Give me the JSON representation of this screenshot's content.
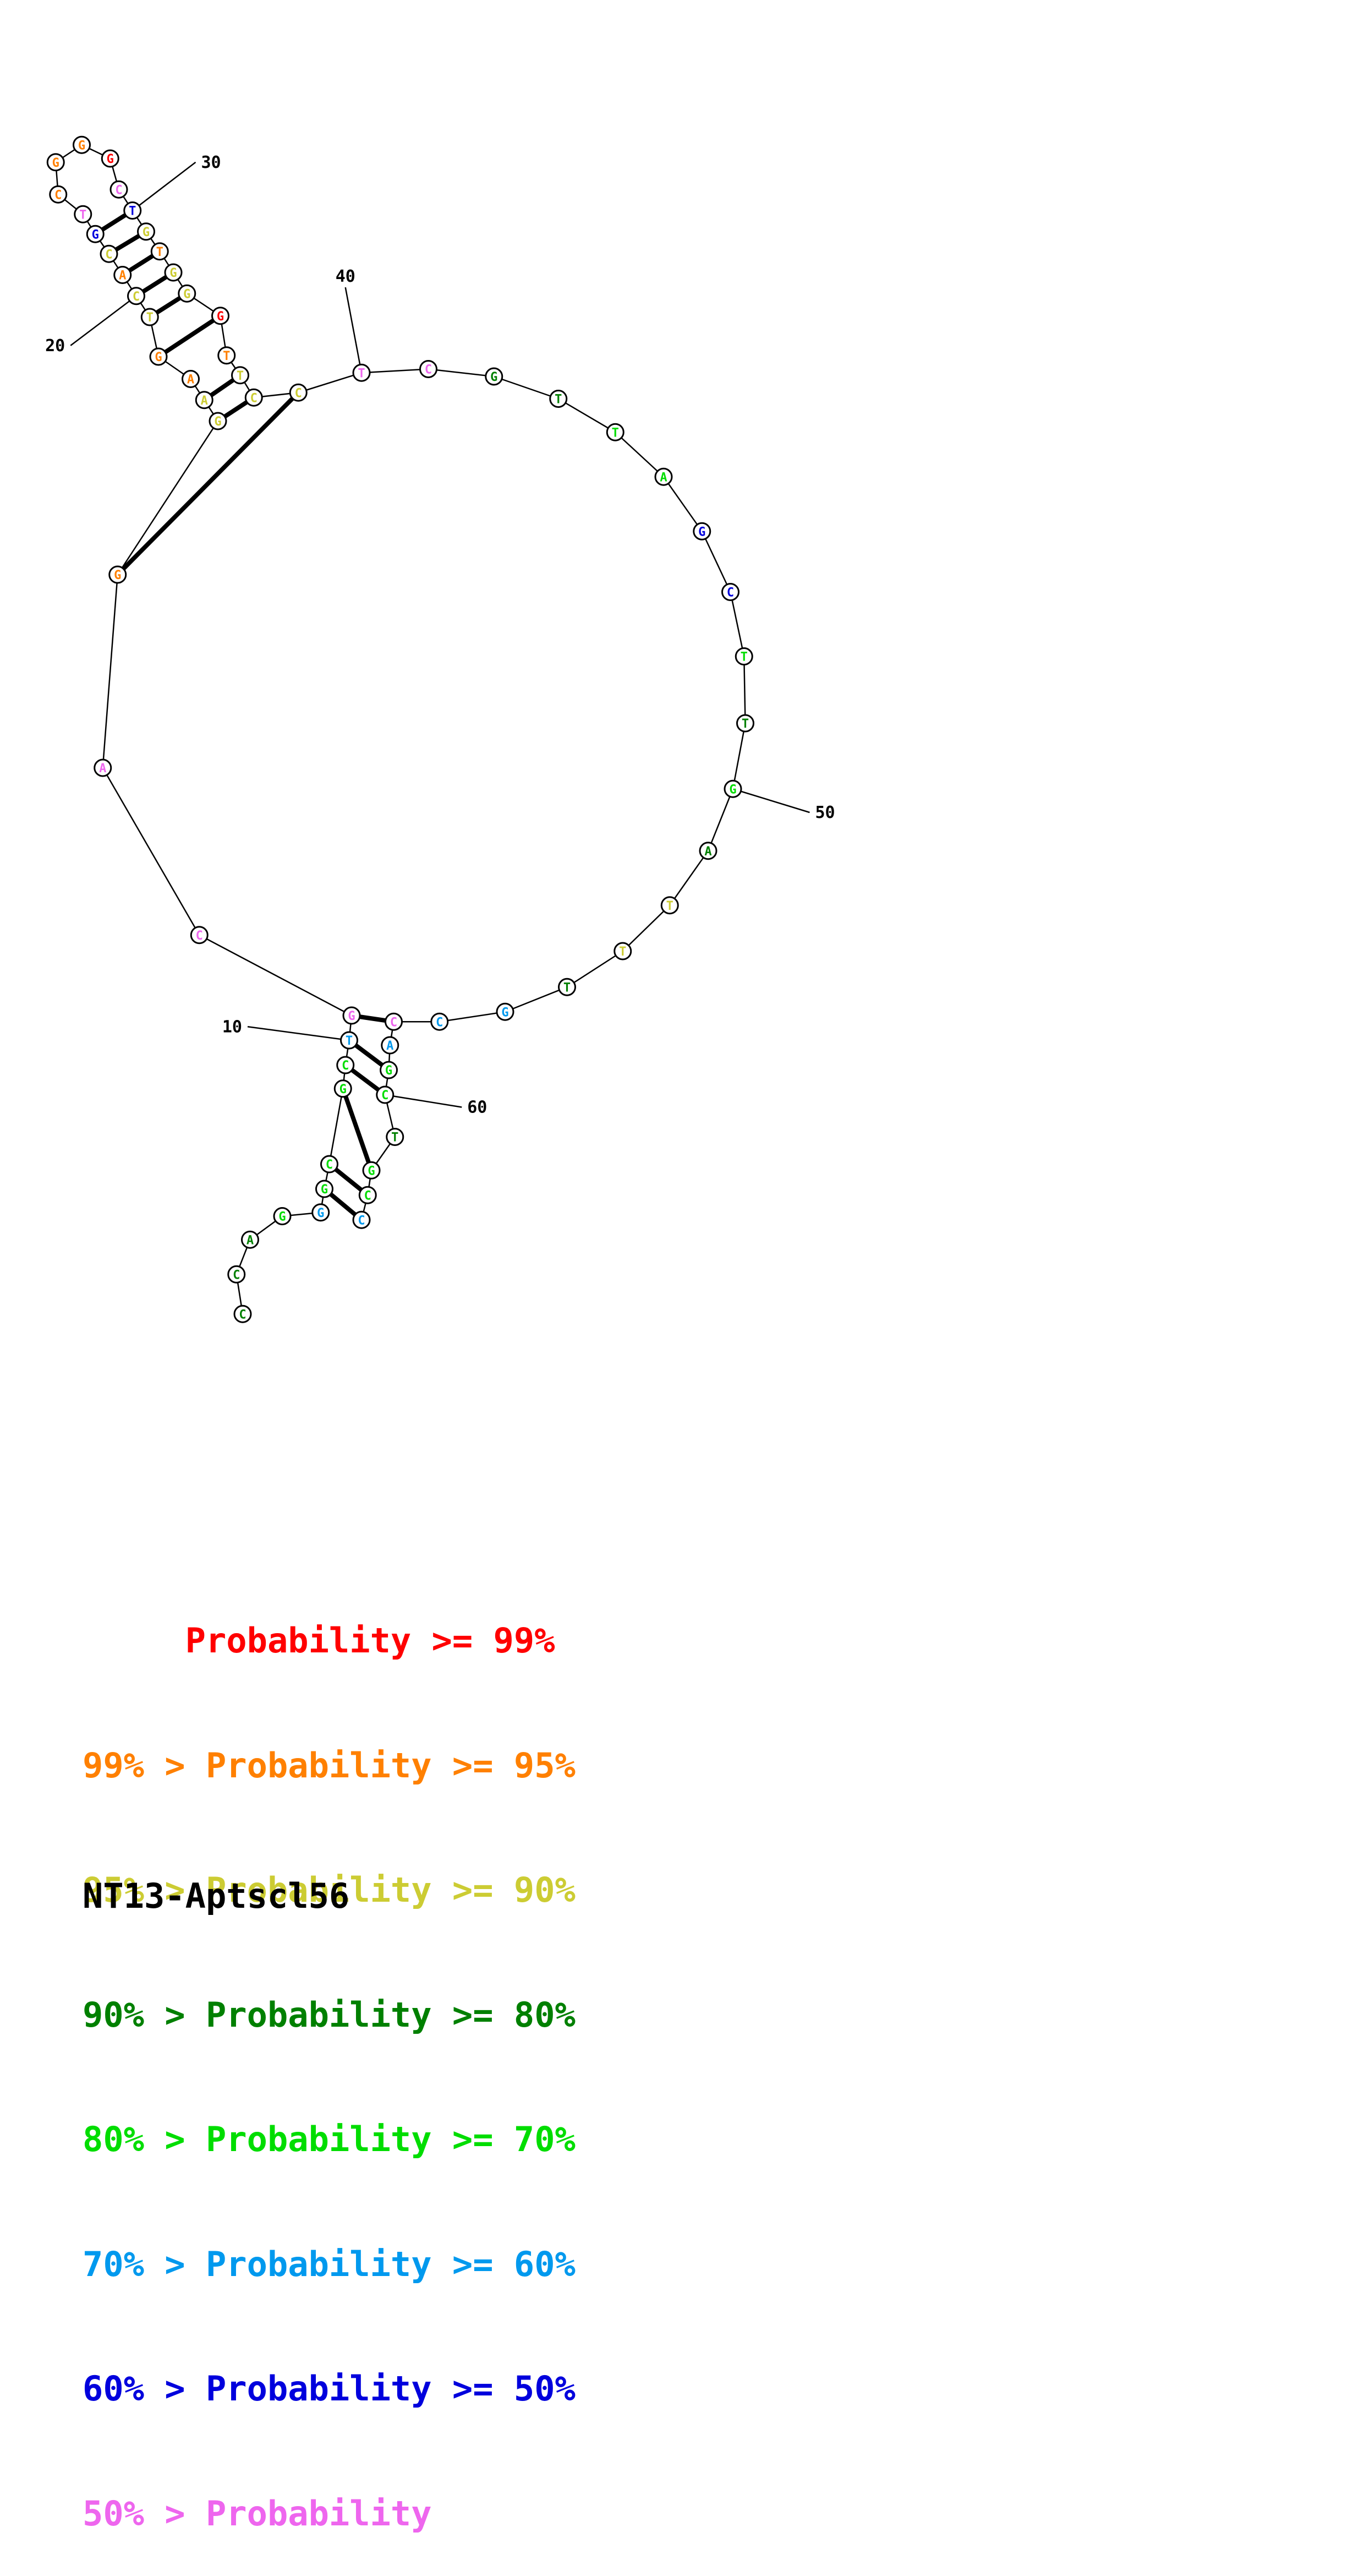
{
  "title": "NT13-Aptscl56",
  "colors": {
    "p99": "#ff0000",
    "p95": "#ff8000",
    "p90": "#cccc33",
    "p80": "#008000",
    "p70": "#00dd00",
    "p60": "#0099ee",
    "p50": "#0000dd",
    "plt50": "#ee66ee"
  },
  "legend": [
    {
      "text": "     Probability >= 99%",
      "color": "#ff0000"
    },
    {
      "text": "99% > Probability >= 95%",
      "color": "#ff8000"
    },
    {
      "text": "95% > Probability >= 90%",
      "color": "#cccc33"
    },
    {
      "text": "90% > Probability >= 80%",
      "color": "#008000"
    },
    {
      "text": "80% > Probability >= 70%",
      "color": "#00dd00"
    },
    {
      "text": "70% > Probability >= 60%",
      "color": "#0099ee"
    },
    {
      "text": "60% > Probability >= 50%",
      "color": "#0000dd"
    },
    {
      "text": "50% > Probability",
      "color": "#ee66ee"
    }
  ],
  "position_labels": [
    {
      "label": "10",
      "index": 10
    },
    {
      "label": "20",
      "index": 20
    },
    {
      "label": "30",
      "index": 30
    },
    {
      "label": "40",
      "index": 40
    },
    {
      "label": "50",
      "index": 50
    },
    {
      "label": "60",
      "index": 60
    }
  ],
  "nucleotides": [
    {
      "i": 1,
      "base": "C",
      "prob": "p80"
    },
    {
      "i": 2,
      "base": "C",
      "prob": "p80"
    },
    {
      "i": 3,
      "base": "A",
      "prob": "p80"
    },
    {
      "i": 4,
      "base": "G",
      "prob": "p70"
    },
    {
      "i": 5,
      "base": "G",
      "prob": "p60"
    },
    {
      "i": 6,
      "base": "G",
      "prob": "p70"
    },
    {
      "i": 7,
      "base": "C",
      "prob": "p70"
    },
    {
      "i": 8,
      "base": "G",
      "prob": "p70"
    },
    {
      "i": 9,
      "base": "C",
      "prob": "p70"
    },
    {
      "i": 10,
      "base": "T",
      "prob": "p60"
    },
    {
      "i": 11,
      "base": "G",
      "prob": "plt50"
    },
    {
      "i": 12,
      "base": "C",
      "prob": "plt50"
    },
    {
      "i": 13,
      "base": "A",
      "prob": "plt50"
    },
    {
      "i": 14,
      "base": "G",
      "prob": "p95"
    },
    {
      "i": 15,
      "base": "G",
      "prob": "p90"
    },
    {
      "i": 16,
      "base": "A",
      "prob": "p90"
    },
    {
      "i": 17,
      "base": "A",
      "prob": "p95"
    },
    {
      "i": 18,
      "base": "G",
      "prob": "p95"
    },
    {
      "i": 19,
      "base": "T",
      "prob": "p90"
    },
    {
      "i": 20,
      "base": "C",
      "prob": "p90"
    },
    {
      "i": 21,
      "base": "A",
      "prob": "p95"
    },
    {
      "i": 22,
      "base": "C",
      "prob": "p90"
    },
    {
      "i": 23,
      "base": "G",
      "prob": "p50"
    },
    {
      "i": 24,
      "base": "T",
      "prob": "plt50"
    },
    {
      "i": 25,
      "base": "C",
      "prob": "p95"
    },
    {
      "i": 26,
      "base": "G",
      "prob": "p95"
    },
    {
      "i": 27,
      "base": "G",
      "prob": "p95"
    },
    {
      "i": 28,
      "base": "G",
      "prob": "p99"
    },
    {
      "i": 29,
      "base": "C",
      "prob": "plt50"
    },
    {
      "i": 30,
      "base": "T",
      "prob": "p50"
    },
    {
      "i": 31,
      "base": "G",
      "prob": "p90"
    },
    {
      "i": 32,
      "base": "T",
      "prob": "p95"
    },
    {
      "i": 33,
      "base": "G",
      "prob": "p90"
    },
    {
      "i": 34,
      "base": "G",
      "prob": "p90"
    },
    {
      "i": 35,
      "base": "G",
      "prob": "p99"
    },
    {
      "i": 36,
      "base": "T",
      "prob": "p95"
    },
    {
      "i": 37,
      "base": "T",
      "prob": "p90"
    },
    {
      "i": 38,
      "base": "C",
      "prob": "p90"
    },
    {
      "i": 39,
      "base": "C",
      "prob": "p90"
    },
    {
      "i": 40,
      "base": "T",
      "prob": "plt50"
    },
    {
      "i": 41,
      "base": "C",
      "prob": "plt50"
    },
    {
      "i": 42,
      "base": "G",
      "prob": "p80"
    },
    {
      "i": 43,
      "base": "T",
      "prob": "p80"
    },
    {
      "i": 44,
      "base": "T",
      "prob": "p70"
    },
    {
      "i": 45,
      "base": "A",
      "prob": "p70"
    },
    {
      "i": 46,
      "base": "G",
      "prob": "p50"
    },
    {
      "i": 47,
      "base": "C",
      "prob": "p50"
    },
    {
      "i": 48,
      "base": "T",
      "prob": "p70"
    },
    {
      "i": 49,
      "base": "T",
      "prob": "p80"
    },
    {
      "i": 50,
      "base": "G",
      "prob": "p70"
    },
    {
      "i": 51,
      "base": "A",
      "prob": "p80"
    },
    {
      "i": 52,
      "base": "T",
      "prob": "p90"
    },
    {
      "i": 53,
      "base": "T",
      "prob": "p90"
    },
    {
      "i": 54,
      "base": "T",
      "prob": "p80"
    },
    {
      "i": 55,
      "base": "G",
      "prob": "p60"
    },
    {
      "i": 56,
      "base": "C",
      "prob": "p60"
    },
    {
      "i": 57,
      "base": "C",
      "prob": "plt50"
    },
    {
      "i": 58,
      "base": "A",
      "prob": "p60"
    },
    {
      "i": 59,
      "base": "G",
      "prob": "p70"
    },
    {
      "i": 60,
      "base": "C",
      "prob": "p70"
    },
    {
      "i": 61,
      "base": "T",
      "prob": "p80"
    },
    {
      "i": 62,
      "base": "G",
      "prob": "p70"
    },
    {
      "i": 63,
      "base": "C",
      "prob": "p70"
    },
    {
      "i": 64,
      "base": "C",
      "prob": "p60"
    }
  ],
  "pairs": [
    [
      6,
      64
    ],
    [
      7,
      63
    ],
    [
      8,
      62
    ],
    [
      9,
      60
    ],
    [
      10,
      59
    ],
    [
      11,
      57
    ],
    [
      14,
      39
    ],
    [
      15,
      38
    ],
    [
      16,
      37
    ],
    [
      18,
      35
    ],
    [
      19,
      34
    ],
    [
      20,
      33
    ],
    [
      21,
      32
    ],
    [
      22,
      31
    ],
    [
      23,
      30
    ]
  ]
}
